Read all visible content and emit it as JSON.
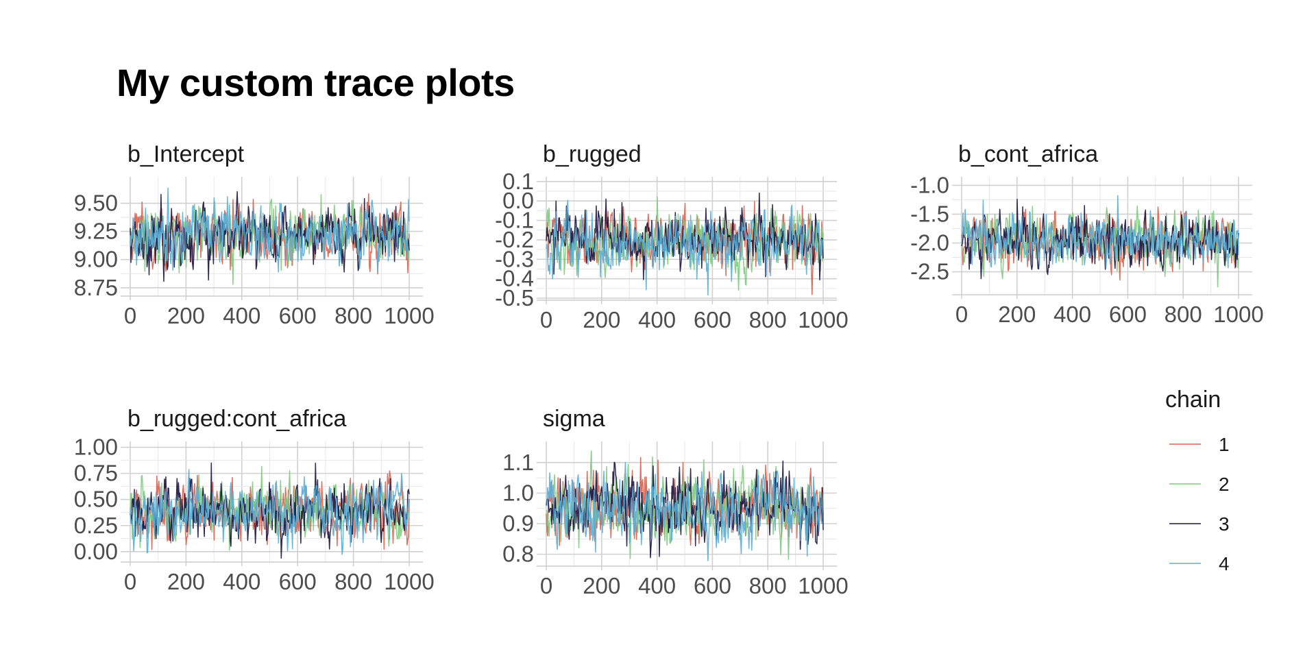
{
  "title": "My custom trace plots",
  "legend": {
    "title": "chain",
    "entries": [
      {
        "label": "1",
        "color": "#d6604d"
      },
      {
        "label": "2",
        "color": "#7fc97f"
      },
      {
        "label": "3",
        "color": "#1b1340"
      },
      {
        "label": "4",
        "color": "#5aaed6"
      }
    ]
  },
  "chart_data": [
    {
      "type": "line",
      "title": "b_Intercept",
      "x_ticks": [
        0,
        200,
        400,
        600,
        800,
        1000
      ],
      "y_ticks": [
        "8.75",
        "9.00",
        "9.25",
        "9.50"
      ],
      "xlim": [
        0,
        1000
      ],
      "ylim": [
        8.7,
        9.71
      ],
      "grid": true,
      "series": [
        {
          "chain": "1",
          "mean": 9.22,
          "sd": 0.13
        },
        {
          "chain": "2",
          "mean": 9.22,
          "sd": 0.13
        },
        {
          "chain": "3",
          "mean": 9.21,
          "sd": 0.13
        },
        {
          "chain": "4",
          "mean": 9.22,
          "sd": 0.13
        }
      ]
    },
    {
      "type": "line",
      "title": "b_rugged",
      "x_ticks": [
        0,
        200,
        400,
        600,
        800,
        1000
      ],
      "y_ticks": [
        "-0.5",
        "-0.4",
        "-0.3",
        "-0.2",
        "-0.1",
        "0.0",
        "0.1"
      ],
      "xlim": [
        0,
        1000
      ],
      "ylim": [
        -0.5,
        0.11
      ],
      "grid": true,
      "series": [
        {
          "chain": "1",
          "mean": -0.2,
          "sd": 0.075
        },
        {
          "chain": "2",
          "mean": -0.2,
          "sd": 0.075
        },
        {
          "chain": "3",
          "mean": -0.2,
          "sd": 0.075
        },
        {
          "chain": "4",
          "mean": -0.21,
          "sd": 0.075
        }
      ]
    },
    {
      "type": "line",
      "title": "b_cont_africa",
      "x_ticks": [
        0,
        200,
        400,
        600,
        800,
        1000
      ],
      "y_ticks": [
        "-2.5",
        "-2.0",
        "-1.5",
        "-1.0"
      ],
      "xlim": [
        0,
        1000
      ],
      "ylim": [
        -2.85,
        -0.9
      ],
      "grid": true,
      "series": [
        {
          "chain": "1",
          "mean": -1.95,
          "sd": 0.23
        },
        {
          "chain": "2",
          "mean": -1.95,
          "sd": 0.23
        },
        {
          "chain": "3",
          "mean": -1.95,
          "sd": 0.23
        },
        {
          "chain": "4",
          "mean": -1.96,
          "sd": 0.23
        }
      ]
    },
    {
      "type": "line",
      "title": "b_rugged:cont_africa",
      "x_ticks": [
        0,
        200,
        400,
        600,
        800,
        1000
      ],
      "y_ticks": [
        "0.00",
        "0.25",
        "0.50",
        "0.75",
        "1.00"
      ],
      "xlim": [
        0,
        1000
      ],
      "ylim": [
        -0.08,
        1.03
      ],
      "grid": true,
      "series": [
        {
          "chain": "1",
          "mean": 0.39,
          "sd": 0.14
        },
        {
          "chain": "2",
          "mean": 0.4,
          "sd": 0.14
        },
        {
          "chain": "3",
          "mean": 0.39,
          "sd": 0.14
        },
        {
          "chain": "4",
          "mean": 0.39,
          "sd": 0.14
        }
      ]
    },
    {
      "type": "line",
      "title": "sigma",
      "x_ticks": [
        0,
        200,
        400,
        600,
        800,
        1000
      ],
      "y_ticks": [
        "0.8",
        "0.9",
        "1.0",
        "1.1"
      ],
      "xlim": [
        0,
        1000
      ],
      "ylim": [
        0.77,
        1.16
      ],
      "grid": true,
      "series": [
        {
          "chain": "1",
          "mean": 0.95,
          "sd": 0.055
        },
        {
          "chain": "2",
          "mean": 0.95,
          "sd": 0.055
        },
        {
          "chain": "3",
          "mean": 0.95,
          "sd": 0.055
        },
        {
          "chain": "4",
          "mean": 0.95,
          "sd": 0.055
        }
      ]
    }
  ]
}
